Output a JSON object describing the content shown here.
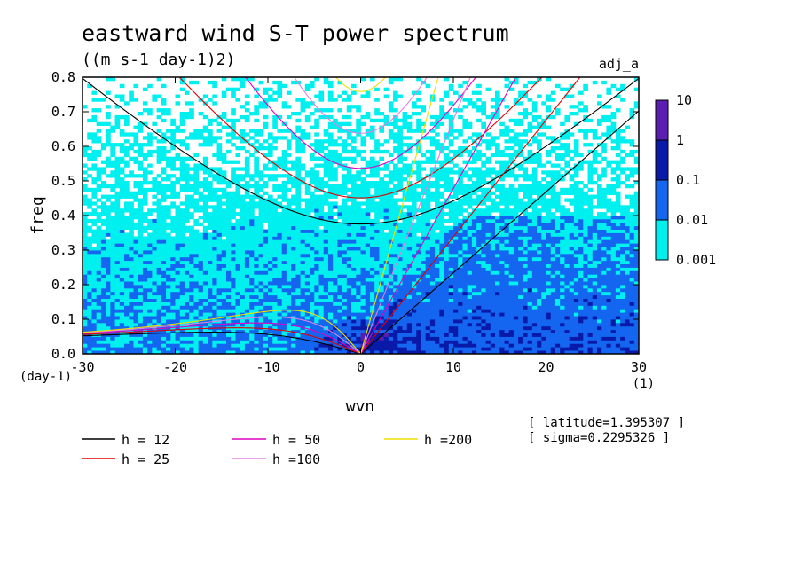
{
  "chart_data": {
    "type": "heatmap",
    "title": "eastward wind S-T power spectrum",
    "subtitle": "((m s-1 day-1)2)",
    "run_label": "adj_a",
    "xlabel": "wvn",
    "ylabel": "freq",
    "x_unit": "(1)",
    "y_unit": "(day-1)",
    "xlim": [
      -30,
      30
    ],
    "ylim": [
      0,
      0.8
    ],
    "x_ticks": [
      -30,
      -20,
      -10,
      0,
      10,
      20,
      30
    ],
    "y_ticks": [
      0.0,
      0.1,
      0.2,
      0.3,
      0.4,
      0.5,
      0.6,
      0.7,
      0.8
    ],
    "colorbar": {
      "levels": [
        "10",
        "1",
        "0.1",
        "0.01",
        "0.001"
      ],
      "colors": [
        "#5a1fb0",
        "#0a1aa8",
        "#1466f0",
        "#00f0f0"
      ]
    },
    "dispersion_curves": [
      {
        "name": "h = 12",
        "h": 12,
        "color": "#000000"
      },
      {
        "name": "h = 25",
        "h": 25,
        "color": "#e00000"
      },
      {
        "name": "h = 50",
        "h": 50,
        "color": "#e000c0"
      },
      {
        "name": "h =100",
        "h": 100,
        "color": "#e080e0"
      },
      {
        "name": "h =200",
        "h": 200,
        "color": "#f0e000"
      }
    ],
    "annotations": [
      "[ latitude=1.395307 ]",
      "[ sigma=0.2295326 ]"
    ]
  }
}
